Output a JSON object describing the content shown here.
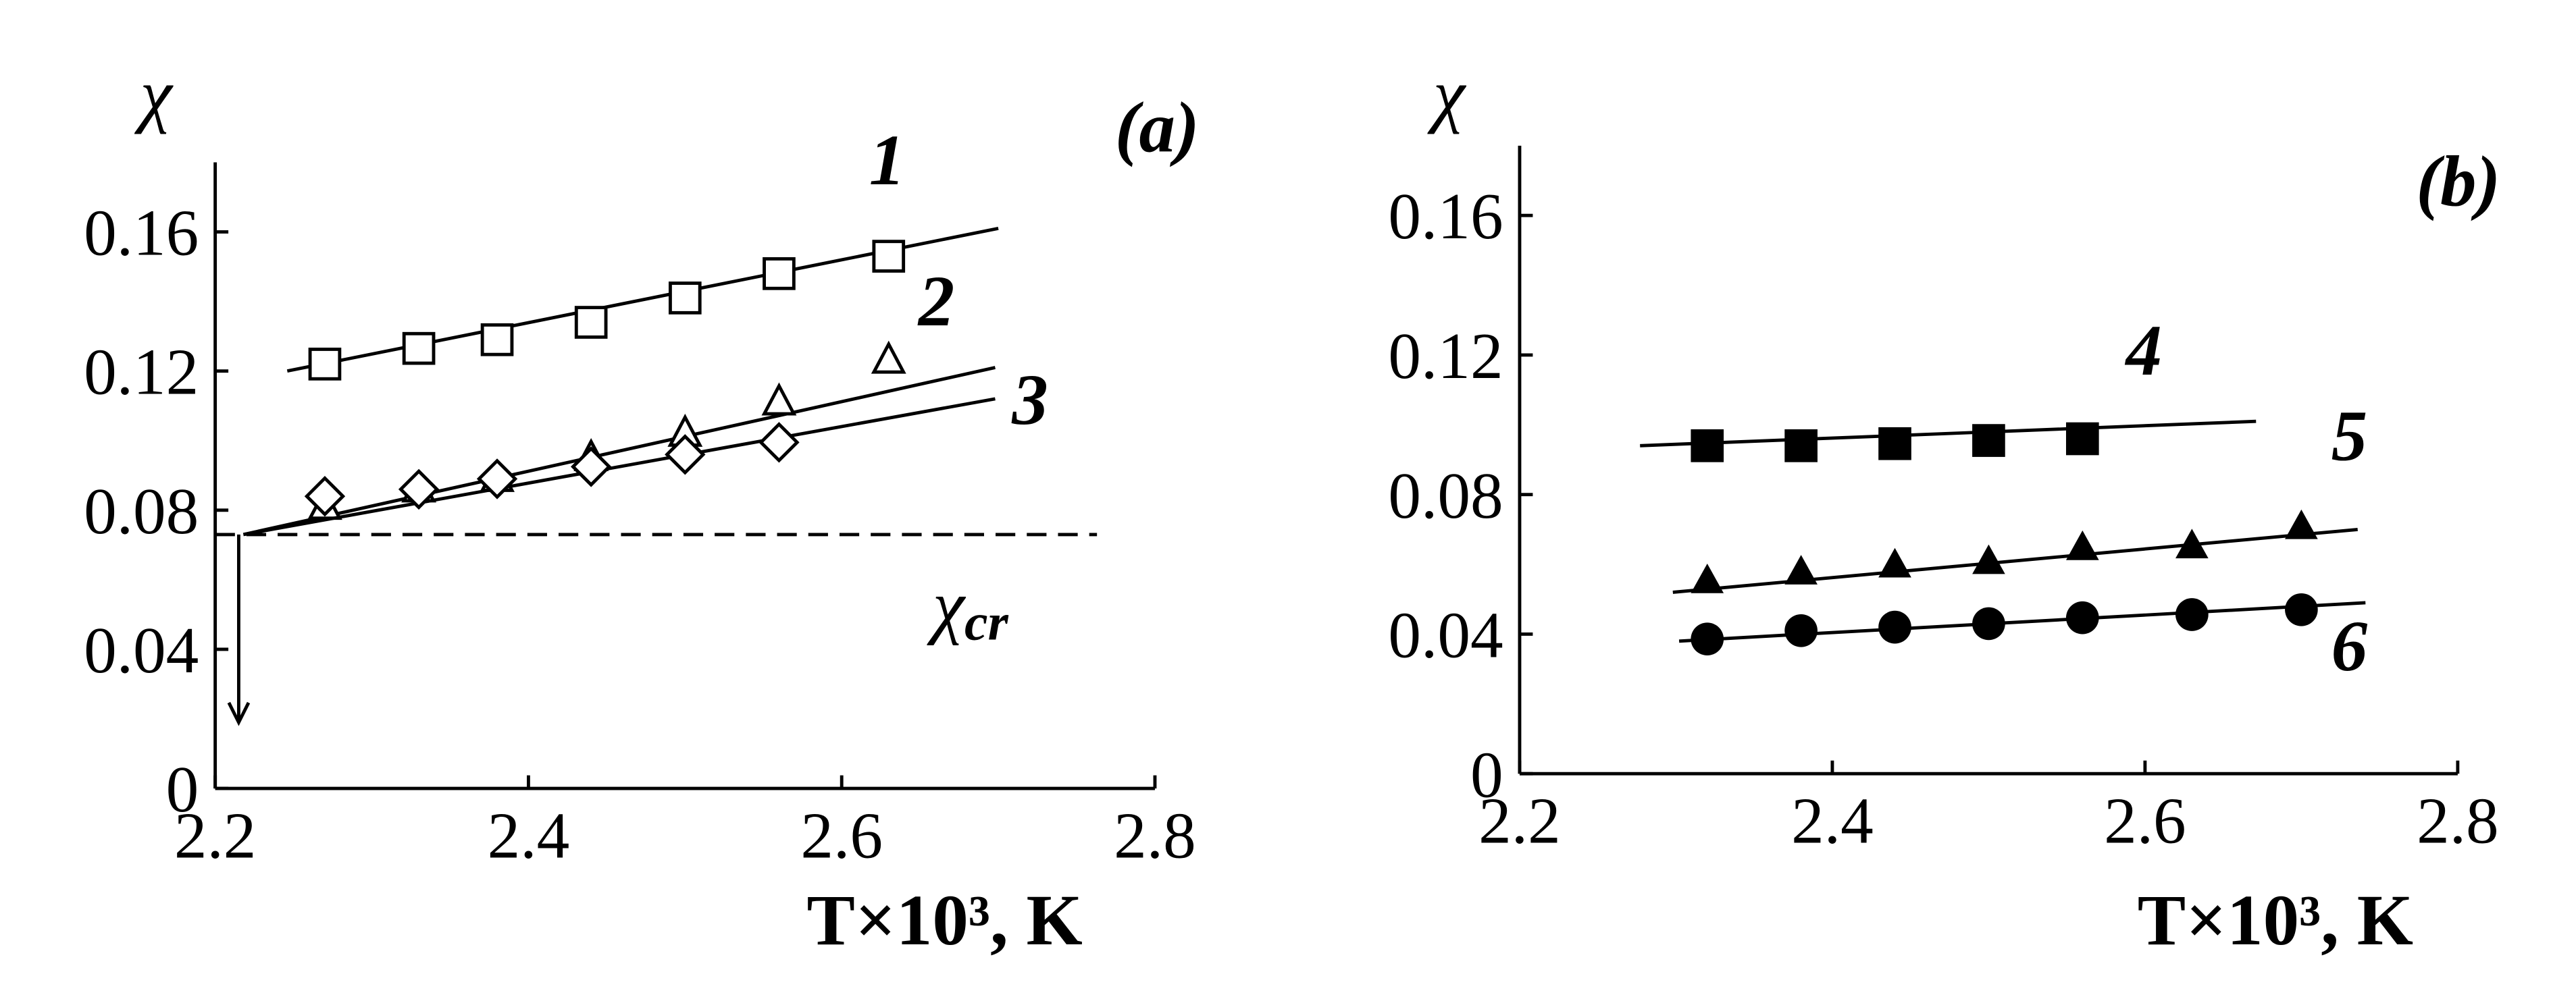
{
  "chart_data": [
    {
      "type": "scatter",
      "title": "(a)",
      "y_label": "χ",
      "x_label": "T×10³, K",
      "xlim": [
        2.2,
        2.8
      ],
      "ylim": [
        0,
        0.18
      ],
      "xticks": [
        2.2,
        2.4,
        2.6,
        2.8
      ],
      "yticks": [
        0,
        0.04,
        0.08,
        0.12,
        0.16
      ],
      "series": [
        {
          "name": "1",
          "color": "#000",
          "marker": "square-open",
          "x": [
            2.27,
            2.33,
            2.38,
            2.44,
            2.5,
            2.56,
            2.63
          ],
          "values": [
            0.122,
            0.1265,
            0.129,
            0.134,
            0.141,
            0.148,
            0.153
          ],
          "fit": {
            "x": [
              2.246,
              2.7
            ],
            "values": [
              0.12,
              0.161
            ]
          }
        },
        {
          "name": "2",
          "color": "#000",
          "marker": "triangle-open",
          "x": [
            2.27,
            2.33,
            2.38,
            2.44,
            2.5,
            2.56,
            2.63
          ],
          "values": [
            0.081,
            0.086,
            0.089,
            0.095,
            0.102,
            0.111,
            0.123
          ],
          "fit": {
            "x": [
              2.218,
              2.698
            ],
            "values": [
              0.073,
              0.121
            ]
          }
        },
        {
          "name": "3",
          "color": "#000",
          "marker": "diamond-open",
          "x": [
            2.27,
            2.33,
            2.38,
            2.44,
            2.5,
            2.56
          ],
          "values": [
            0.084,
            0.086,
            0.089,
            0.0925,
            0.096,
            0.0995
          ],
          "fit": {
            "x": [
              2.218,
              2.698
            ],
            "values": [
              0.073,
              0.112
            ]
          }
        }
      ],
      "reference_line": {
        "y": 0.073,
        "x": [
          2.2,
          2.763
        ],
        "label": {
          "text": "χ",
          "sub": "cr"
        }
      },
      "arrow": {
        "x": 2.215,
        "y": [
          0.073,
          0.019
        ]
      }
    },
    {
      "type": "scatter",
      "title": "(b)",
      "y_label": "χ",
      "x_label": "T×10³, K",
      "xlim": [
        2.2,
        2.8
      ],
      "ylim": [
        0,
        0.18
      ],
      "xticks": [
        2.2,
        2.4,
        2.6,
        2.8
      ],
      "yticks": [
        0,
        0.04,
        0.08,
        0.12,
        0.16
      ],
      "series": [
        {
          "name": "4",
          "color": "#000",
          "marker": "square-filled",
          "x": [
            2.32,
            2.38,
            2.44,
            2.5,
            2.56
          ],
          "values": [
            0.094,
            0.094,
            0.0946,
            0.0955,
            0.096
          ],
          "fit": {
            "x": [
              2.277,
              2.671
            ],
            "values": [
              0.094,
              0.101
            ]
          }
        },
        {
          "name": "5",
          "color": "#000",
          "marker": "triangle-filled",
          "x": [
            2.32,
            2.38,
            2.44,
            2.5,
            2.56,
            2.63,
            2.7
          ],
          "values": [
            0.0555,
            0.058,
            0.06,
            0.061,
            0.065,
            0.0655,
            0.071
          ],
          "fit": {
            "x": [
              2.298,
              2.736
            ],
            "values": [
              0.052,
              0.07
            ]
          }
        },
        {
          "name": "6",
          "color": "#000",
          "marker": "circle-filled",
          "x": [
            2.32,
            2.38,
            2.44,
            2.5,
            2.56,
            2.63,
            2.7
          ],
          "values": [
            0.0386,
            0.041,
            0.042,
            0.043,
            0.0447,
            0.0456,
            0.047
          ],
          "fit": {
            "x": [
              2.302,
              2.741
            ],
            "values": [
              0.038,
              0.049
            ]
          }
        }
      ]
    }
  ]
}
